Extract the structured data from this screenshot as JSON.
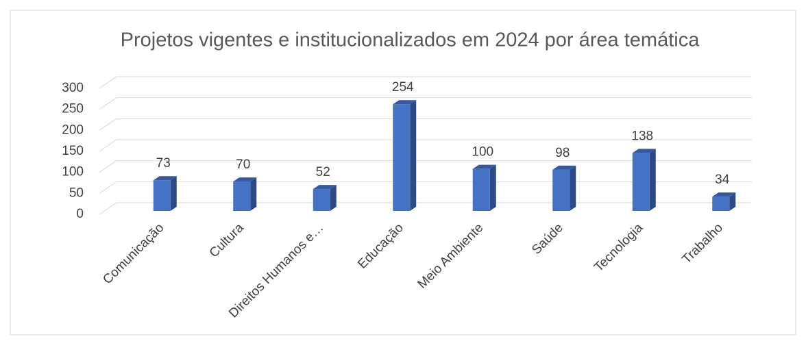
{
  "chart_data": {
    "type": "bar",
    "title": "Projetos vigentes e institucionalizados em 2024 por área temática",
    "categories": [
      "Comunicação",
      "Cultura",
      "Direitos Humanos e…",
      "Educação",
      "Meio Ambiente",
      "Saúde",
      "Tecnologia",
      "Trabalho"
    ],
    "values": [
      73,
      70,
      52,
      254,
      100,
      98,
      138,
      34
    ],
    "color": "#4472c4",
    "ylim": [
      0,
      300
    ],
    "yticks": [
      0,
      50,
      100,
      150,
      200,
      250,
      300
    ],
    "grid": true
  }
}
